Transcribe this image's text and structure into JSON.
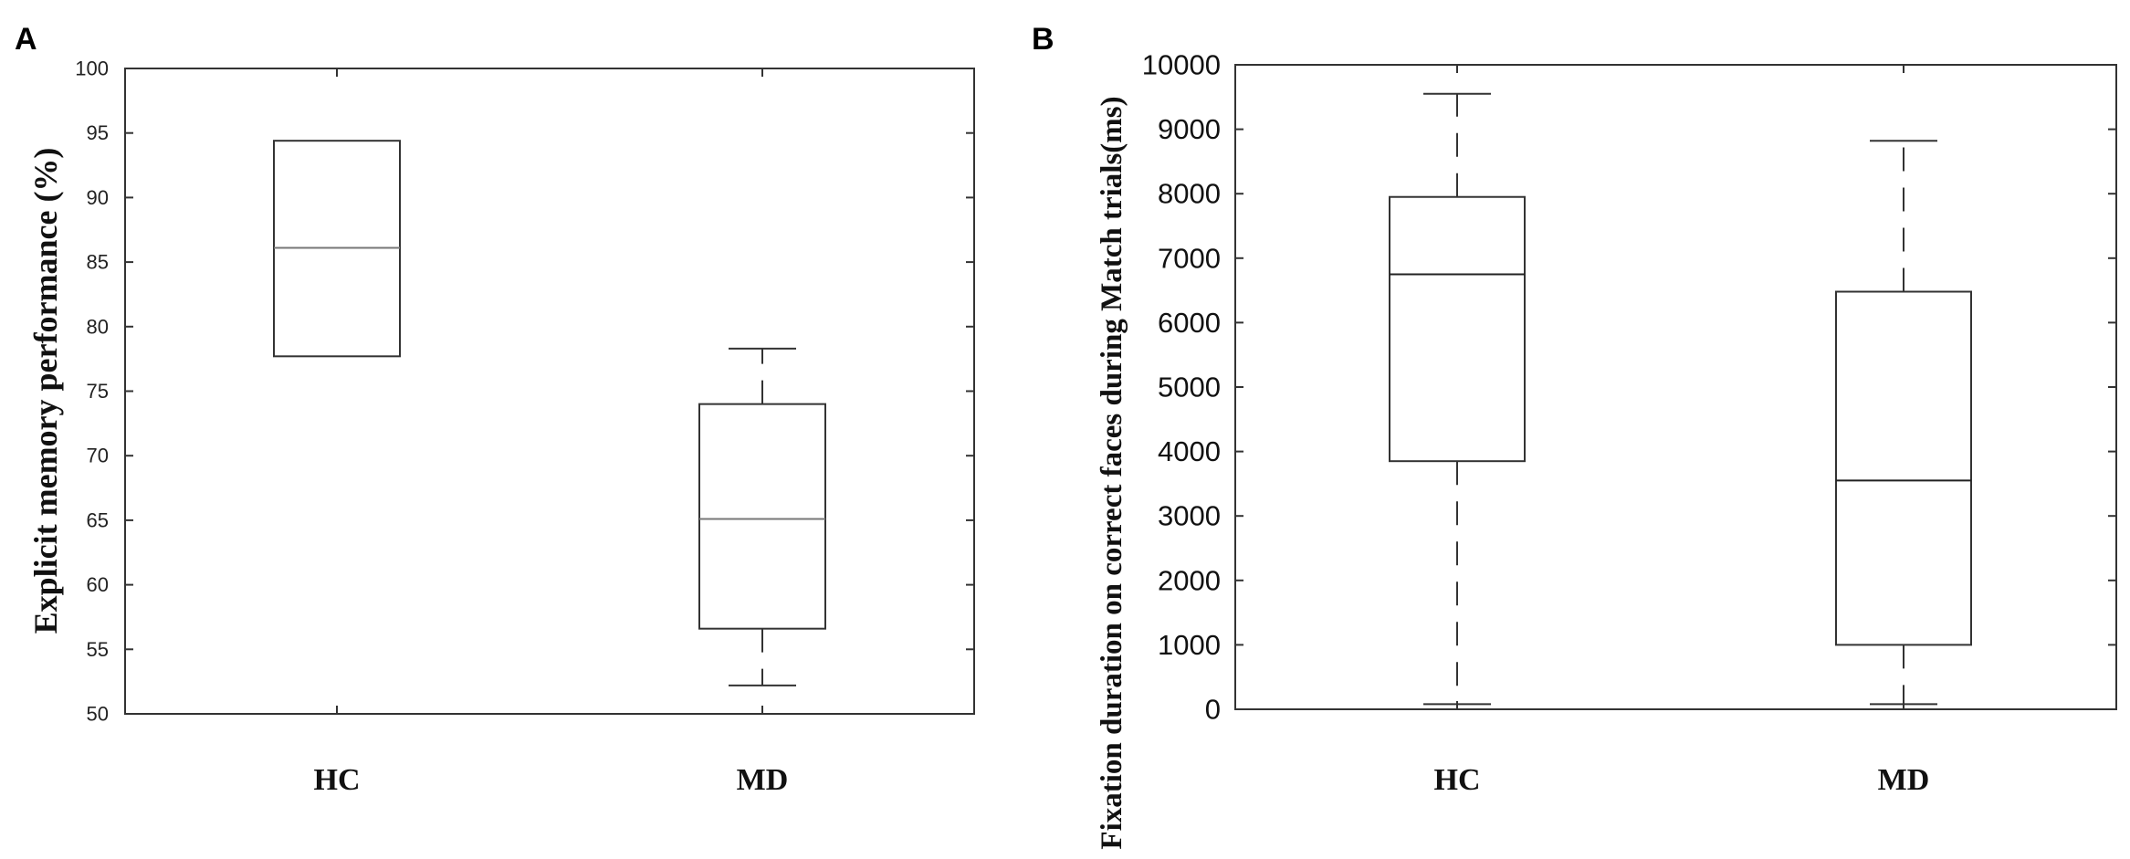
{
  "chart_data": [
    {
      "type": "box",
      "panel": "A",
      "ylabel": "Explicit memory performance (%)",
      "xlabel": "",
      "ylim": [
        50,
        100
      ],
      "yticks": [
        "50",
        "55",
        "60",
        "65",
        "70",
        "75",
        "80",
        "85",
        "90",
        "95",
        "100"
      ],
      "categories": [
        "HC",
        "MD"
      ],
      "boxes": [
        {
          "name": "HC",
          "whisker_low": 77.7,
          "q1": 77.7,
          "median": 86.1,
          "q3": 94.4,
          "whisker_high": 94.4
        },
        {
          "name": "MD",
          "whisker_low": 52.2,
          "q1": 56.6,
          "median": 65.1,
          "q3": 74.0,
          "whisker_high": 78.3
        }
      ]
    },
    {
      "type": "box",
      "panel": "B",
      "ylabel": "Fixation duration on correct faces during Match trials(ms)",
      "xlabel": "",
      "ylim": [
        0,
        10000
      ],
      "yticks": [
        "0",
        "1000",
        "2000",
        "3000",
        "4000",
        "5000",
        "6000",
        "7000",
        "8000",
        "9000",
        "10000"
      ],
      "categories": [
        "HC",
        "MD"
      ],
      "boxes": [
        {
          "name": "HC",
          "whisker_low": 80,
          "q1": 3850,
          "median": 6750,
          "q3": 7950,
          "whisker_high": 9550
        },
        {
          "name": "MD",
          "whisker_low": 80,
          "q1": 1000,
          "median": 3550,
          "q3": 6480,
          "whisker_high": 8820
        }
      ]
    }
  ]
}
